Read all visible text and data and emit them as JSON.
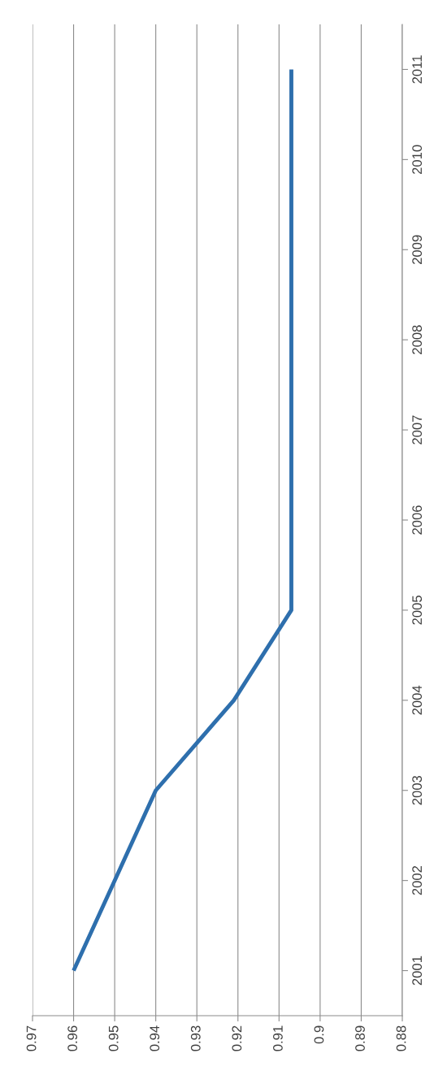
{
  "chart_data": {
    "type": "line",
    "orientation": "horizontal",
    "categories": [
      "2011",
      "2010",
      "2009",
      "2008",
      "2007",
      "2006",
      "2005",
      "2004",
      "2003",
      "2002",
      "2001"
    ],
    "values": [
      0.907,
      0.907,
      0.907,
      0.907,
      0.907,
      0.907,
      0.907,
      0.921,
      0.94,
      0.95,
      0.96
    ],
    "color": "#2e6fad",
    "xlim": [
      0.97,
      0.88
    ],
    "xticks": [
      0.97,
      0.96,
      0.95,
      0.94,
      0.93,
      0.92,
      0.91,
      0.9,
      0.89,
      0.88
    ],
    "grid": "x",
    "marker": "none",
    "line_style": "solid"
  }
}
